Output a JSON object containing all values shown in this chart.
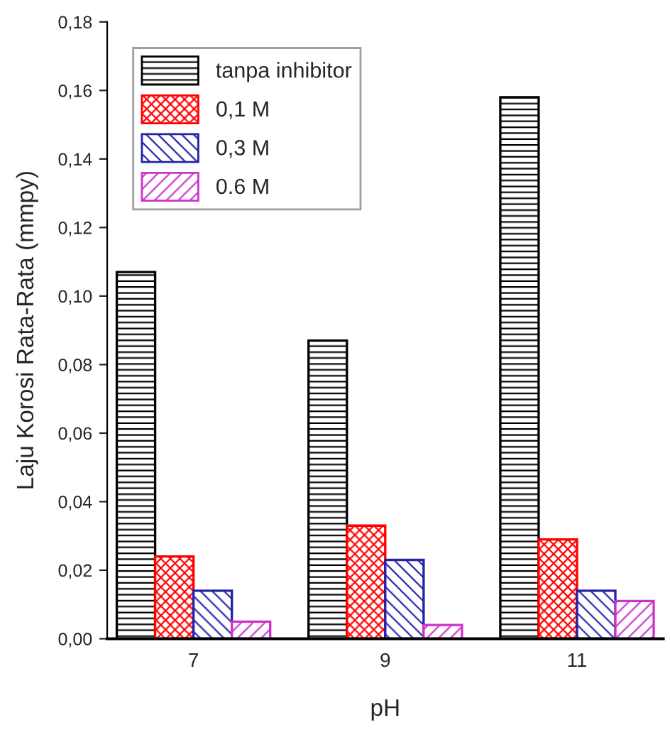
{
  "chart_data": {
    "type": "bar",
    "xlabel": "pH",
    "ylabel": "Laju Korosi Rata-Rata (mmpy)",
    "categories": [
      "7",
      "9",
      "11"
    ],
    "series": [
      {
        "name": "tanpa inhibitor",
        "color": "#000000",
        "values": [
          0.107,
          0.087,
          0.158
        ]
      },
      {
        "name": "0,1 M",
        "color": "#ff0000",
        "values": [
          0.024,
          0.033,
          0.029
        ]
      },
      {
        "name": "0,3 M",
        "color": "#2222aa",
        "values": [
          0.014,
          0.023,
          0.014
        ]
      },
      {
        "name": "0.6 M",
        "color": "#cc33cc",
        "values": [
          0.005,
          0.004,
          0.011
        ]
      }
    ],
    "ylim": [
      0,
      0.18
    ],
    "yticks": [
      {
        "value": 0,
        "label": "0,00"
      },
      {
        "value": 0.02,
        "label": "0,02"
      },
      {
        "value": 0.04,
        "label": "0,04"
      },
      {
        "value": 0.06,
        "label": "0,06"
      },
      {
        "value": 0.08,
        "label": "0,08"
      },
      {
        "value": 0.1,
        "label": "0,10"
      },
      {
        "value": 0.12,
        "label": "0,12"
      },
      {
        "value": 0.14,
        "label": "0,14"
      },
      {
        "value": 0.16,
        "label": "0,16"
      },
      {
        "value": 0.18,
        "label": "0,18"
      }
    ],
    "grid": false,
    "legend": "top left"
  }
}
